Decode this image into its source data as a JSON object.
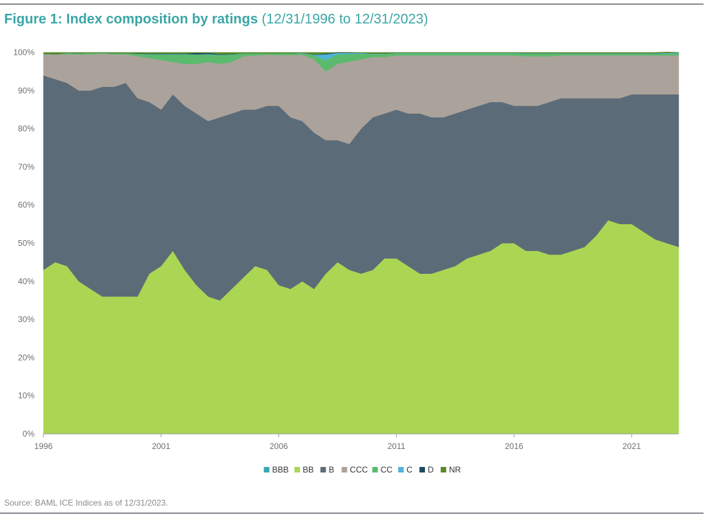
{
  "title": {
    "main": "Figure 1: Index composition by ratings",
    "range": "(12/31/1996 to 12/31/2023)"
  },
  "source": "Source: BAML ICE Indices as of 12/31/2023.",
  "chart_data": {
    "type": "area",
    "stacked": true,
    "x": [
      1996.0,
      1996.5,
      1997.0,
      1997.5,
      1998.0,
      1998.5,
      1999.0,
      1999.5,
      2000.0,
      2000.5,
      2001.0,
      2001.5,
      2002.0,
      2002.5,
      2003.0,
      2003.5,
      2004.0,
      2004.5,
      2005.0,
      2005.5,
      2006.0,
      2006.5,
      2007.0,
      2007.5,
      2008.0,
      2008.5,
      2009.0,
      2009.5,
      2010.0,
      2010.5,
      2011.0,
      2011.5,
      2012.0,
      2012.5,
      2013.0,
      2013.5,
      2014.0,
      2014.5,
      2015.0,
      2015.5,
      2016.0,
      2016.5,
      2017.0,
      2017.5,
      2018.0,
      2018.5,
      2019.0,
      2019.5,
      2020.0,
      2020.5,
      2021.0,
      2021.5,
      2022.0,
      2022.5,
      2023.0
    ],
    "series": [
      {
        "name": "BB",
        "color": "#aad653",
        "values": [
          43,
          45,
          44,
          40,
          38,
          36,
          36,
          36,
          36,
          42,
          44,
          48,
          43,
          39,
          36,
          35,
          38,
          41,
          44,
          43,
          39,
          38,
          40,
          38,
          42,
          45,
          43,
          42,
          43,
          46,
          46,
          44,
          42,
          42,
          43,
          44,
          46,
          47,
          48,
          50,
          50,
          48,
          48,
          47,
          47,
          48,
          49,
          52,
          56,
          55,
          55,
          53,
          51,
          50,
          49
        ]
      },
      {
        "name": "B",
        "color": "#5c6b78",
        "values": [
          51,
          48,
          48,
          50,
          52,
          55,
          55,
          56,
          52,
          45,
          41,
          41,
          43,
          45,
          46,
          48,
          46,
          44,
          41,
          43,
          47,
          45,
          42,
          41,
          35,
          32,
          33,
          38,
          40,
          38,
          39,
          40,
          42,
          41,
          40,
          40,
          39,
          39,
          39,
          37,
          36,
          38,
          38,
          40,
          41,
          40,
          39,
          36,
          32,
          33,
          34,
          36,
          38,
          39,
          40
        ]
      },
      {
        "name": "CCC",
        "color": "#aba39b",
        "values": [
          5.5,
          6.5,
          7.5,
          9.5,
          9.5,
          8.7,
          8.5,
          7.5,
          11,
          11.5,
          13,
          8.5,
          11,
          13,
          15.5,
          14,
          13.5,
          14,
          14.2,
          13.4,
          13.3,
          16.3,
          17.4,
          19.2,
          18,
          20,
          21.6,
          18.2,
          15.8,
          14.8,
          14.2,
          15.2,
          15.2,
          16.2,
          16.2,
          15.2,
          14.2,
          13.2,
          12.2,
          12.2,
          13.2,
          13,
          13,
          12,
          11.2,
          11.2,
          11.2,
          11.2,
          11.2,
          11.2,
          10.2,
          10.2,
          10.2,
          10.2,
          10.2
        ]
      },
      {
        "name": "CC",
        "color": "#5cba6e",
        "values": [
          0.2,
          0,
          0.3,
          0.3,
          0.4,
          0.2,
          0.3,
          0.3,
          0.7,
          1,
          1.5,
          2,
          2.5,
          2.5,
          2,
          2.3,
          2,
          0.8,
          0.6,
          0.4,
          0.5,
          0.5,
          0.4,
          1,
          3,
          2.5,
          2,
          1.5,
          0.8,
          0.8,
          0.6,
          0.6,
          0.6,
          0.6,
          0.6,
          0.6,
          0.6,
          0.6,
          0.6,
          0.6,
          0.6,
          0.7,
          0.7,
          0.7,
          0.5,
          0.5,
          0.5,
          0.5,
          0.5,
          0.5,
          0.5,
          0.5,
          0.5,
          0.5,
          0.5
        ]
      },
      {
        "name": "C",
        "color": "#4fb3d9",
        "values": [
          0,
          0,
          0.1,
          0,
          0,
          0,
          0,
          0,
          0,
          0.1,
          0.1,
          0.1,
          0.1,
          0,
          0.1,
          0.1,
          0,
          0,
          0,
          0,
          0,
          0,
          0.1,
          0.2,
          1.5,
          0.4,
          0.3,
          0.2,
          0.1,
          0.1,
          0.1,
          0.1,
          0.1,
          0.1,
          0.1,
          0.1,
          0.1,
          0.1,
          0.1,
          0.1,
          0.1,
          0.1,
          0.1,
          0.1,
          0.1,
          0.1,
          0.1,
          0.1,
          0.1,
          0.1,
          0.1,
          0.1,
          0.1,
          0.2,
          0.2
        ]
      },
      {
        "name": "D",
        "color": "#1e4a5f",
        "values": [
          0,
          0,
          0,
          0,
          0,
          0,
          0,
          0,
          0.1,
          0.1,
          0.1,
          0.1,
          0.1,
          0.4,
          0.3,
          0.1,
          0.1,
          0,
          0,
          0,
          0,
          0,
          0,
          0,
          0.2,
          0.1,
          0.1,
          0,
          0,
          0,
          0,
          0,
          0,
          0,
          0,
          0,
          0,
          0,
          0,
          0,
          0,
          0,
          0,
          0,
          0,
          0,
          0,
          0,
          0,
          0,
          0,
          0,
          0,
          0,
          0
        ]
      },
      {
        "name": "NR",
        "color": "#5a8a2a",
        "values": [
          0.3,
          0.5,
          0.1,
          0.2,
          0.1,
          0.1,
          0.2,
          0.2,
          0.2,
          0.3,
          0.3,
          0.3,
          0.3,
          0.1,
          0.1,
          0.5,
          0.4,
          0.2,
          0.2,
          0.2,
          0.2,
          0.2,
          0.1,
          0.6,
          0.3,
          0,
          0,
          0.1,
          0.3,
          0.3,
          0.1,
          0.1,
          0.1,
          0.1,
          0.1,
          0.1,
          0.1,
          0.1,
          0.1,
          0.1,
          0.1,
          0.2,
          0.2,
          0.2,
          0.2,
          0.2,
          0.2,
          0.2,
          0.2,
          0.2,
          0.2,
          0.2,
          0.2,
          0.2,
          0.1
        ]
      }
    ],
    "legend": [
      {
        "label": "BBB",
        "color": "#3aa6b0"
      },
      {
        "label": "BB",
        "color": "#aad653"
      },
      {
        "label": "B",
        "color": "#5c6b78"
      },
      {
        "label": "CCC",
        "color": "#aba39b"
      },
      {
        "label": "CC",
        "color": "#5cba6e"
      },
      {
        "label": "C",
        "color": "#4fb3d9"
      },
      {
        "label": "D",
        "color": "#1e4a5f"
      },
      {
        "label": "NR",
        "color": "#5a8a2a"
      }
    ],
    "legend_position": "bottom-center",
    "ylim": [
      0,
      100
    ],
    "y_ticks": [
      0,
      10,
      20,
      30,
      40,
      50,
      60,
      70,
      80,
      90,
      100
    ],
    "y_tick_labels": [
      "0%",
      "10%",
      "20%",
      "30%",
      "40%",
      "50%",
      "60%",
      "70%",
      "80%",
      "90%",
      "100%"
    ],
    "xlim": [
      1996,
      2023
    ],
    "x_ticks": [
      1996,
      2001,
      2006,
      2011,
      2016,
      2021
    ],
    "x_tick_labels": [
      "1996",
      "2001",
      "2006",
      "2011",
      "2016",
      "2021"
    ],
    "grid": false
  }
}
